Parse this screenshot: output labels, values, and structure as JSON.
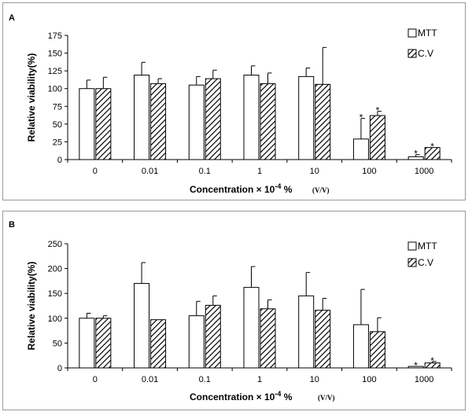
{
  "chart_data": [
    {
      "type": "bar",
      "panel_label": "A",
      "categories": [
        "0",
        "0.01",
        "0.1",
        "1",
        "10",
        "100",
        "1000"
      ],
      "series": [
        {
          "name": "MTT",
          "pattern": "open",
          "values": [
            100,
            119,
            105,
            119,
            117,
            29,
            4
          ],
          "errors": [
            12,
            18,
            12,
            13,
            12,
            29,
            3
          ]
        },
        {
          "name": "C.V",
          "pattern": "hatched",
          "values": [
            100,
            107,
            114,
            107,
            106,
            62,
            17
          ],
          "errors": [
            16,
            7,
            12,
            15,
            52,
            6,
            0
          ]
        }
      ],
      "significance": [
        {
          "category": "100",
          "series": "MTT",
          "label": "*"
        },
        {
          "category": "100",
          "series": "C.V",
          "label": "*"
        },
        {
          "category": "1000",
          "series": "MTT",
          "label": "*"
        },
        {
          "category": "1000",
          "series": "C.V",
          "label": "*"
        }
      ],
      "ylim": [
        0,
        175
      ],
      "yticks": [
        "0",
        "25",
        "50",
        "75",
        "100",
        "125",
        "150",
        "175"
      ],
      "ylabel": "Relative viability(%)",
      "xlabel": "Concentration × 10",
      "xlabel_exponent": "-4",
      "xlabel_suffix": " %",
      "xlabel_unit": "(V/V)",
      "legend": {
        "position": "top-right",
        "entries": [
          "MTT",
          "C.V"
        ]
      }
    },
    {
      "type": "bar",
      "panel_label": "B",
      "categories": [
        "0",
        "0.01",
        "0.1",
        "1",
        "10",
        "100",
        "1000"
      ],
      "series": [
        {
          "name": "MTT",
          "pattern": "open",
          "values": [
            100,
            170,
            105,
            162,
            145,
            87,
            3
          ],
          "errors": [
            10,
            42,
            29,
            42,
            47,
            71,
            0
          ]
        },
        {
          "name": "C.V",
          "pattern": "hatched",
          "values": [
            100,
            97,
            126,
            119,
            116,
            73,
            10
          ],
          "errors": [
            5,
            0,
            19,
            18,
            24,
            28,
            3
          ]
        }
      ],
      "significance": [
        {
          "category": "1000",
          "series": "MTT",
          "label": "*"
        },
        {
          "category": "1000",
          "series": "C.V",
          "label": "*"
        }
      ],
      "ylim": [
        0,
        250
      ],
      "yticks": [
        "0",
        "50",
        "100",
        "150",
        "200",
        "250"
      ],
      "ylabel": "Relative viability(%)",
      "xlabel": "Concentration × 10",
      "xlabel_exponent": "-4",
      "xlabel_suffix": " %",
      "xlabel_unit": "(V/V)",
      "legend": {
        "position": "top-right",
        "entries": [
          "MTT",
          "C.V"
        ]
      }
    }
  ]
}
